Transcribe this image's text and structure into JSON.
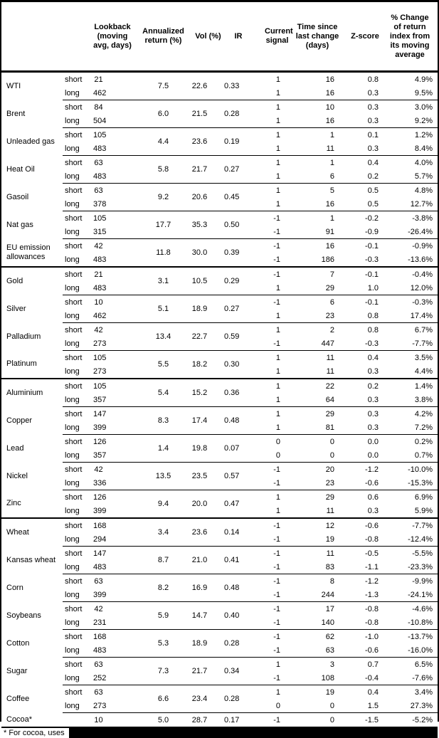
{
  "header": {
    "cols": [
      "Lookback (moving avg, days)",
      "Annualized return (%)",
      "Vol (%)",
      "IR",
      "Current signal",
      "Time since last change (days)",
      "Z-score",
      "% Change of return index from its moving average"
    ]
  },
  "sections": [
    [
      {
        "name": "WTI",
        "legs": [
          "short",
          "long"
        ],
        "lookback": [
          "21",
          "462"
        ],
        "annualized": "7.5",
        "vol": "22.6",
        "ir": "0.33",
        "signal": [
          "1",
          "1"
        ],
        "time_since": [
          "16",
          "16"
        ],
        "zscore": [
          "0.8",
          "0.3"
        ],
        "pct_change": [
          "4.9%",
          "9.5%"
        ]
      },
      {
        "name": "Brent",
        "legs": [
          "short",
          "long"
        ],
        "lookback": [
          "84",
          "504"
        ],
        "annualized": "6.0",
        "vol": "21.5",
        "ir": "0.28",
        "signal": [
          "1",
          "1"
        ],
        "time_since": [
          "10",
          "16"
        ],
        "zscore": [
          "0.3",
          "0.3"
        ],
        "pct_change": [
          "3.0%",
          "9.2%"
        ]
      },
      {
        "name": "Unleaded gas",
        "legs": [
          "short",
          "long"
        ],
        "lookback": [
          "105",
          "483"
        ],
        "annualized": "4.4",
        "vol": "23.6",
        "ir": "0.19",
        "signal": [
          "1",
          "1"
        ],
        "time_since": [
          "1",
          "11"
        ],
        "zscore": [
          "0.1",
          "0.3"
        ],
        "pct_change": [
          "1.2%",
          "8.4%"
        ]
      },
      {
        "name": "Heat Oil",
        "legs": [
          "short",
          "long"
        ],
        "lookback": [
          "63",
          "483"
        ],
        "annualized": "5.8",
        "vol": "21.7",
        "ir": "0.27",
        "signal": [
          "1",
          "1"
        ],
        "time_since": [
          "1",
          "6"
        ],
        "zscore": [
          "0.4",
          "0.2"
        ],
        "pct_change": [
          "4.0%",
          "5.7%"
        ]
      },
      {
        "name": "Gasoil",
        "legs": [
          "short",
          "long"
        ],
        "lookback": [
          "63",
          "378"
        ],
        "annualized": "9.2",
        "vol": "20.6",
        "ir": "0.45",
        "signal": [
          "1",
          "1"
        ],
        "time_since": [
          "5",
          "16"
        ],
        "zscore": [
          "0.5",
          "0.5"
        ],
        "pct_change": [
          "4.8%",
          "12.7%"
        ]
      },
      {
        "name": "Nat gas",
        "legs": [
          "short",
          "long"
        ],
        "lookback": [
          "105",
          "315"
        ],
        "annualized": "17.7",
        "vol": "35.3",
        "ir": "0.50",
        "signal": [
          "-1",
          "-1"
        ],
        "time_since": [
          "1",
          "91"
        ],
        "zscore": [
          "-0.2",
          "-0.9"
        ],
        "pct_change": [
          "-3.8%",
          "-26.4%"
        ]
      },
      {
        "name": "EU emission allowances",
        "legs": [
          "short",
          "long"
        ],
        "lookback": [
          "42",
          "483"
        ],
        "annualized": "11.8",
        "vol": "30.0",
        "ir": "0.39",
        "signal": [
          "-1",
          "-1"
        ],
        "time_since": [
          "16",
          "186"
        ],
        "zscore": [
          "-0.1",
          "-0.3"
        ],
        "pct_change": [
          "-0.9%",
          "-13.6%"
        ]
      }
    ],
    [
      {
        "name": "Gold",
        "legs": [
          "short",
          "long"
        ],
        "lookback": [
          "21",
          "483"
        ],
        "annualized": "3.1",
        "vol": "10.5",
        "ir": "0.29",
        "signal": [
          "-1",
          "1"
        ],
        "time_since": [
          "7",
          "29"
        ],
        "zscore": [
          "-0.1",
          "1.0"
        ],
        "pct_change": [
          "-0.4%",
          "12.0%"
        ]
      },
      {
        "name": "Silver",
        "legs": [
          "short",
          "long"
        ],
        "lookback": [
          "10",
          "462"
        ],
        "annualized": "5.1",
        "vol": "18.9",
        "ir": "0.27",
        "signal": [
          "-1",
          "1"
        ],
        "time_since": [
          "6",
          "23"
        ],
        "zscore": [
          "-0.1",
          "0.8"
        ],
        "pct_change": [
          "-0.3%",
          "17.4%"
        ]
      },
      {
        "name": "Palladium",
        "legs": [
          "short",
          "long"
        ],
        "lookback": [
          "42",
          "273"
        ],
        "annualized": "13.4",
        "vol": "22.7",
        "ir": "0.59",
        "signal": [
          "1",
          "-1"
        ],
        "time_since": [
          "2",
          "447"
        ],
        "zscore": [
          "0.8",
          "-0.3"
        ],
        "pct_change": [
          "6.7%",
          "-7.7%"
        ]
      },
      {
        "name": "Platinum",
        "legs": [
          "short",
          "long"
        ],
        "lookback": [
          "105",
          "273"
        ],
        "annualized": "5.5",
        "vol": "18.2",
        "ir": "0.30",
        "signal": [
          "1",
          "1"
        ],
        "time_since": [
          "11",
          "11"
        ],
        "zscore": [
          "0.4",
          "0.3"
        ],
        "pct_change": [
          "3.5%",
          "4.4%"
        ]
      }
    ],
    [
      {
        "name": "Aluminium",
        "legs": [
          "short",
          "long"
        ],
        "lookback": [
          "105",
          "357"
        ],
        "annualized": "5.4",
        "vol": "15.2",
        "ir": "0.36",
        "signal": [
          "1",
          "1"
        ],
        "time_since": [
          "22",
          "64"
        ],
        "zscore": [
          "0.2",
          "0.3"
        ],
        "pct_change": [
          "1.4%",
          "3.8%"
        ]
      },
      {
        "name": "Copper",
        "legs": [
          "short",
          "long"
        ],
        "lookback": [
          "147",
          "399"
        ],
        "annualized": "8.3",
        "vol": "17.4",
        "ir": "0.48",
        "signal": [
          "1",
          "1"
        ],
        "time_since": [
          "29",
          "81"
        ],
        "zscore": [
          "0.3",
          "0.3"
        ],
        "pct_change": [
          "4.2%",
          "7.2%"
        ]
      },
      {
        "name": "Lead",
        "legs": [
          "short",
          "long"
        ],
        "lookback": [
          "126",
          "357"
        ],
        "annualized": "1.4",
        "vol": "19.8",
        "ir": "0.07",
        "signal": [
          "0",
          "0"
        ],
        "time_since": [
          "0",
          "0"
        ],
        "zscore": [
          "0.0",
          "0.0"
        ],
        "pct_change": [
          "0.2%",
          "0.7%"
        ]
      },
      {
        "name": "Nickel",
        "legs": [
          "short",
          "long"
        ],
        "lookback": [
          "42",
          "336"
        ],
        "annualized": "13.5",
        "vol": "23.5",
        "ir": "0.57",
        "signal": [
          "-1",
          "-1"
        ],
        "time_since": [
          "20",
          "23"
        ],
        "zscore": [
          "-1.2",
          "-0.6"
        ],
        "pct_change": [
          "-10.0%",
          "-15.3%"
        ]
      },
      {
        "name": "Zinc",
        "legs": [
          "short",
          "long"
        ],
        "lookback": [
          "126",
          "399"
        ],
        "annualized": "9.4",
        "vol": "20.0",
        "ir": "0.47",
        "signal": [
          "1",
          "1"
        ],
        "time_since": [
          "29",
          "11"
        ],
        "zscore": [
          "0.6",
          "0.3"
        ],
        "pct_change": [
          "6.9%",
          "5.9%"
        ]
      }
    ],
    [
      {
        "name": "Wheat",
        "legs": [
          "short",
          "long"
        ],
        "lookback": [
          "168",
          "294"
        ],
        "annualized": "3.4",
        "vol": "23.6",
        "ir": "0.14",
        "signal": [
          "-1",
          "-1"
        ],
        "time_since": [
          "12",
          "19"
        ],
        "zscore": [
          "-0.6",
          "-0.8"
        ],
        "pct_change": [
          "-7.7%",
          "-12.4%"
        ]
      },
      {
        "name": "Kansas wheat",
        "legs": [
          "short",
          "long"
        ],
        "lookback": [
          "147",
          "483"
        ],
        "annualized": "8.7",
        "vol": "21.0",
        "ir": "0.41",
        "signal": [
          "-1",
          "-1"
        ],
        "time_since": [
          "11",
          "83"
        ],
        "zscore": [
          "-0.5",
          "-1.1"
        ],
        "pct_change": [
          "-5.5%",
          "-23.3%"
        ]
      },
      {
        "name": "Corn",
        "legs": [
          "short",
          "long"
        ],
        "lookback": [
          "63",
          "399"
        ],
        "annualized": "8.2",
        "vol": "16.9",
        "ir": "0.48",
        "signal": [
          "-1",
          "-1"
        ],
        "time_since": [
          "8",
          "244"
        ],
        "zscore": [
          "-1.2",
          "-1.3"
        ],
        "pct_change": [
          "-9.9%",
          "-24.1%"
        ]
      },
      {
        "name": "Soybeans",
        "legs": [
          "short",
          "long"
        ],
        "lookback": [
          "42",
          "231"
        ],
        "annualized": "5.9",
        "vol": "14.7",
        "ir": "0.40",
        "signal": [
          "-1",
          "-1"
        ],
        "time_since": [
          "17",
          "140"
        ],
        "zscore": [
          "-0.8",
          "-0.8"
        ],
        "pct_change": [
          "-4.6%",
          "-10.8%"
        ]
      },
      {
        "name": "Cotton",
        "legs": [
          "short",
          "long"
        ],
        "lookback": [
          "168",
          "483"
        ],
        "annualized": "5.3",
        "vol": "18.9",
        "ir": "0.28",
        "signal": [
          "-1",
          "-1"
        ],
        "time_since": [
          "62",
          "63"
        ],
        "zscore": [
          "-1.0",
          "-0.6"
        ],
        "pct_change": [
          "-13.7%",
          "-16.0%"
        ]
      },
      {
        "name": "Sugar",
        "legs": [
          "short",
          "long"
        ],
        "lookback": [
          "63",
          "252"
        ],
        "annualized": "7.3",
        "vol": "21.7",
        "ir": "0.34",
        "signal": [
          "1",
          "-1"
        ],
        "time_since": [
          "3",
          "108"
        ],
        "zscore": [
          "0.7",
          "-0.4"
        ],
        "pct_change": [
          "6.5%",
          "-7.6%"
        ]
      },
      {
        "name": "Coffee",
        "legs": [
          "short",
          "long"
        ],
        "lookback": [
          "63",
          "273"
        ],
        "annualized": "6.6",
        "vol": "23.4",
        "ir": "0.28",
        "signal": [
          "1",
          "0"
        ],
        "time_since": [
          "19",
          "0"
        ],
        "zscore": [
          "0.4",
          "1.5"
        ],
        "pct_change": [
          "3.4%",
          "27.3%"
        ]
      },
      {
        "name": "Cocoa*",
        "legs": [
          ""
        ],
        "lookback": [
          "10"
        ],
        "annualized": "5.0",
        "vol": "28.7",
        "ir": "0.17",
        "signal": [
          "-1"
        ],
        "time_since": [
          "0"
        ],
        "zscore": [
          "-1.5"
        ],
        "pct_change": [
          "-5.2%"
        ]
      }
    ]
  ],
  "footnote": {
    "text": "* For cocoa, uses",
    "redacted": true
  }
}
